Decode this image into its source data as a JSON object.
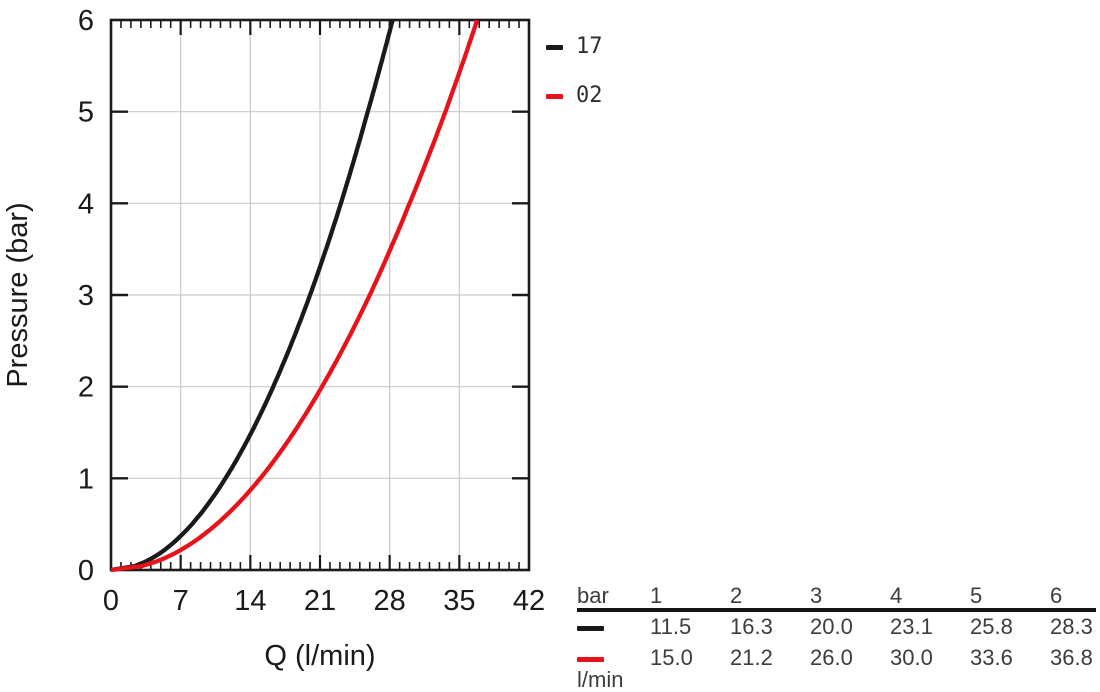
{
  "page": {
    "background": "#ffffff"
  },
  "colors": {
    "series_black": "#1a1a1a",
    "series_red": "#e8131a",
    "grid": "#c9c9c9",
    "axis": "#1a1a1a",
    "table_text": "#3d3d3d",
    "rule": "#141414"
  },
  "chart_data": {
    "type": "line",
    "title": "",
    "xlabel": "Q (l/min)",
    "ylabel": "Pressure (bar)",
    "xlim": [
      0,
      42
    ],
    "ylim": [
      0,
      6
    ],
    "x_major_ticks": [
      0,
      7,
      14,
      21,
      28,
      35,
      42
    ],
    "x_minor_step": 1,
    "y_major_ticks": [
      0,
      1,
      2,
      3,
      4,
      5,
      6
    ],
    "grid": true,
    "legend_position": "outside-top-right",
    "series": [
      {
        "name": "17",
        "color": "#1a1a1a",
        "points": [
          [
            0,
            0
          ],
          [
            11.5,
            1
          ],
          [
            16.3,
            2
          ],
          [
            20.0,
            3
          ],
          [
            23.1,
            4
          ],
          [
            25.8,
            5
          ],
          [
            28.3,
            6
          ]
        ]
      },
      {
        "name": "02",
        "color": "#e8131a",
        "points": [
          [
            0,
            0
          ],
          [
            15.0,
            1
          ],
          [
            21.2,
            2
          ],
          [
            26.0,
            3
          ],
          [
            30.0,
            4
          ],
          [
            33.6,
            5
          ],
          [
            36.8,
            6
          ]
        ]
      }
    ]
  },
  "table": {
    "header_label": "bar",
    "pressure_columns": [
      "1",
      "2",
      "3",
      "4",
      "5",
      "6"
    ],
    "rows": [
      {
        "series": "17",
        "color": "#1a1a1a",
        "values": [
          "11.5",
          "16.3",
          "20.0",
          "23.1",
          "25.8",
          "28.3"
        ]
      },
      {
        "series": "02",
        "color": "#e8131a",
        "values": [
          "15.0",
          "21.2",
          "26.0",
          "30.0",
          "33.6",
          "36.8"
        ]
      }
    ],
    "unit_label": "l/min"
  }
}
